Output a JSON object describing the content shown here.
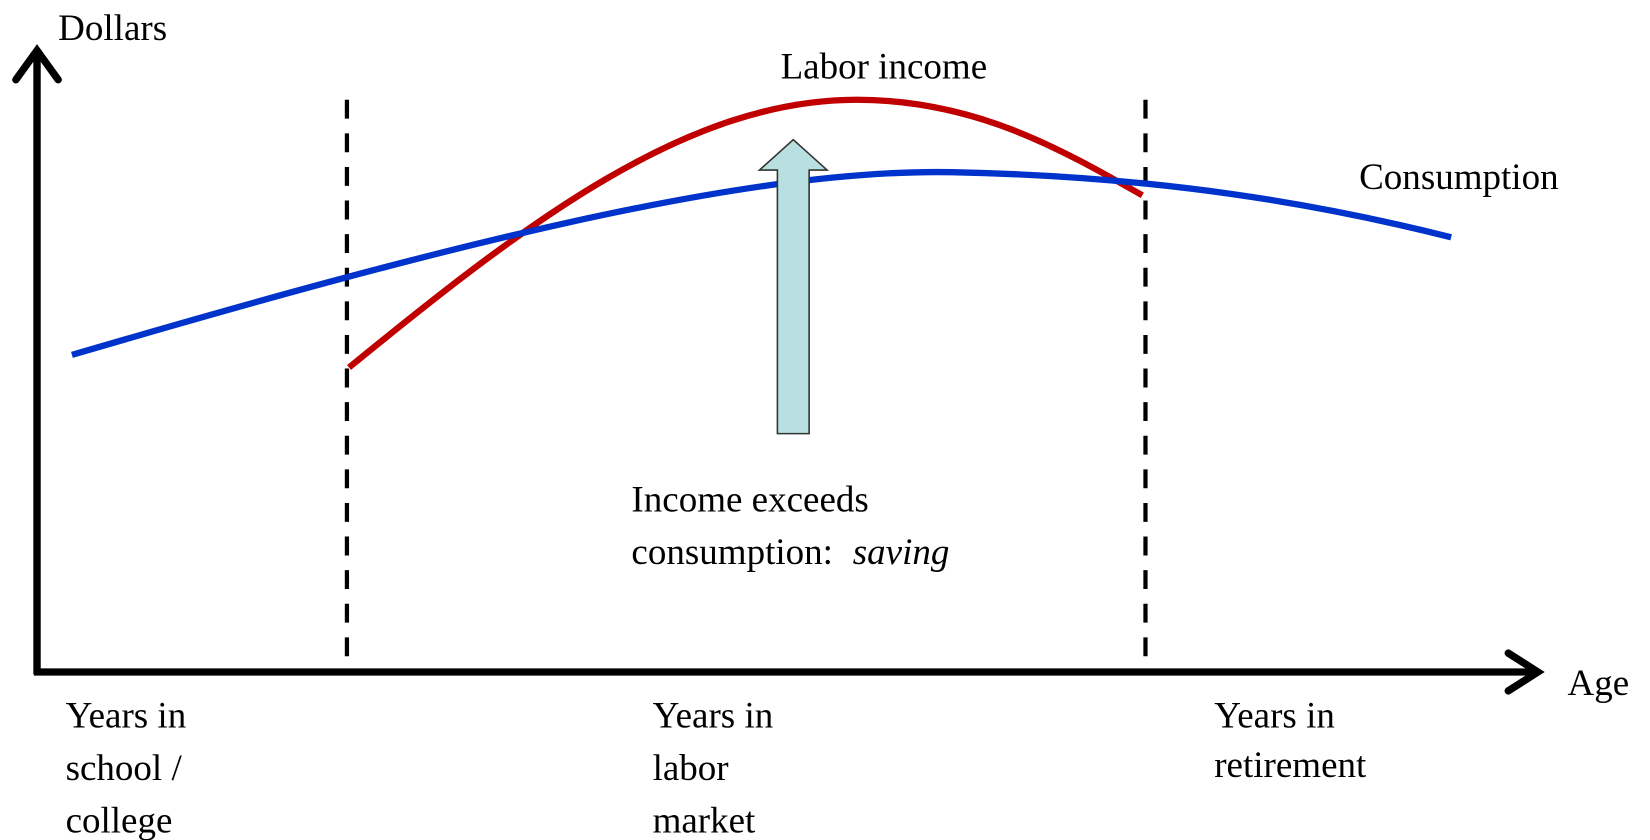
{
  "axes": {
    "y_label": "Dollars",
    "x_label": "Age"
  },
  "curves": [
    {
      "label": "Labor income",
      "color": "#c00000"
    },
    {
      "label": "Consumption",
      "color": "#0033cc"
    }
  ],
  "annotation": {
    "lines": [
      "Income exceeds",
      "consumption:"
    ],
    "emphasis": "saving"
  },
  "phases": [
    {
      "lines": [
        "Years in",
        "school /",
        "college"
      ]
    },
    {
      "lines": [
        "Years in",
        "labor",
        "market"
      ]
    },
    {
      "lines": [
        "Years in",
        "retirement"
      ]
    }
  ]
}
